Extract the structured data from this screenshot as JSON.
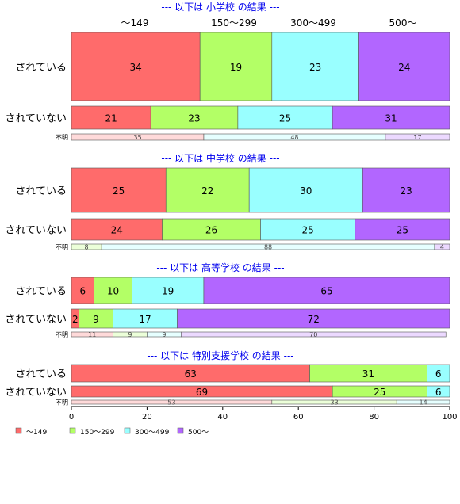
{
  "chart_data": {
    "type": "bar",
    "orientation": "horizontal-stacked-100",
    "categories": [
      "～149",
      "150～299",
      "300～499",
      "500～"
    ],
    "colors": [
      "#ff6b6b",
      "#b3ff66",
      "#99ffff",
      "#b266ff"
    ],
    "header_labels": [
      "～149",
      "150～299",
      "300～499",
      "500～"
    ],
    "x_ticks": [
      "0",
      "20",
      "40",
      "60",
      "80",
      "100"
    ],
    "xlim": [
      0,
      100
    ],
    "legend_position": "bottom-left",
    "panels": [
      {
        "title": "--- 以下は 小学校 の結果 ---",
        "rows": [
          {
            "label": "されている",
            "kind": "main",
            "values": [
              34,
              19,
              23,
              24
            ]
          },
          {
            "label": "されていない",
            "kind": "main",
            "values": [
              21,
              23,
              25,
              31
            ]
          },
          {
            "label": "不明",
            "kind": "small",
            "values": [
              35,
              0,
              48,
              17
            ]
          }
        ]
      },
      {
        "title": "--- 以下は 中学校 の結果 ---",
        "rows": [
          {
            "label": "されている",
            "kind": "main",
            "values": [
              25,
              22,
              30,
              23
            ]
          },
          {
            "label": "されていない",
            "kind": "main",
            "values": [
              24,
              26,
              25,
              25
            ]
          },
          {
            "label": "不明",
            "kind": "small",
            "values": [
              0,
              8,
              88,
              4
            ]
          }
        ]
      },
      {
        "title": "--- 以下は 高等学校 の結果 ---",
        "rows": [
          {
            "label": "されている",
            "kind": "main",
            "values": [
              6,
              10,
              19,
              65
            ]
          },
          {
            "label": "されていない",
            "kind": "main",
            "values": [
              2,
              9,
              17,
              72
            ]
          },
          {
            "label": "不明",
            "kind": "small",
            "values": [
              11,
              9,
              9,
              70
            ]
          }
        ]
      },
      {
        "title": "--- 以下は 特別支援学校 の結果 ---",
        "rows": [
          {
            "label": "されている",
            "kind": "main",
            "values": [
              63,
              31,
              6,
              0
            ]
          },
          {
            "label": "されていない",
            "kind": "main",
            "values": [
              69,
              25,
              6,
              0
            ]
          },
          {
            "label": "不明",
            "kind": "small",
            "values": [
              53,
              33,
              14,
              0
            ]
          }
        ]
      }
    ]
  }
}
